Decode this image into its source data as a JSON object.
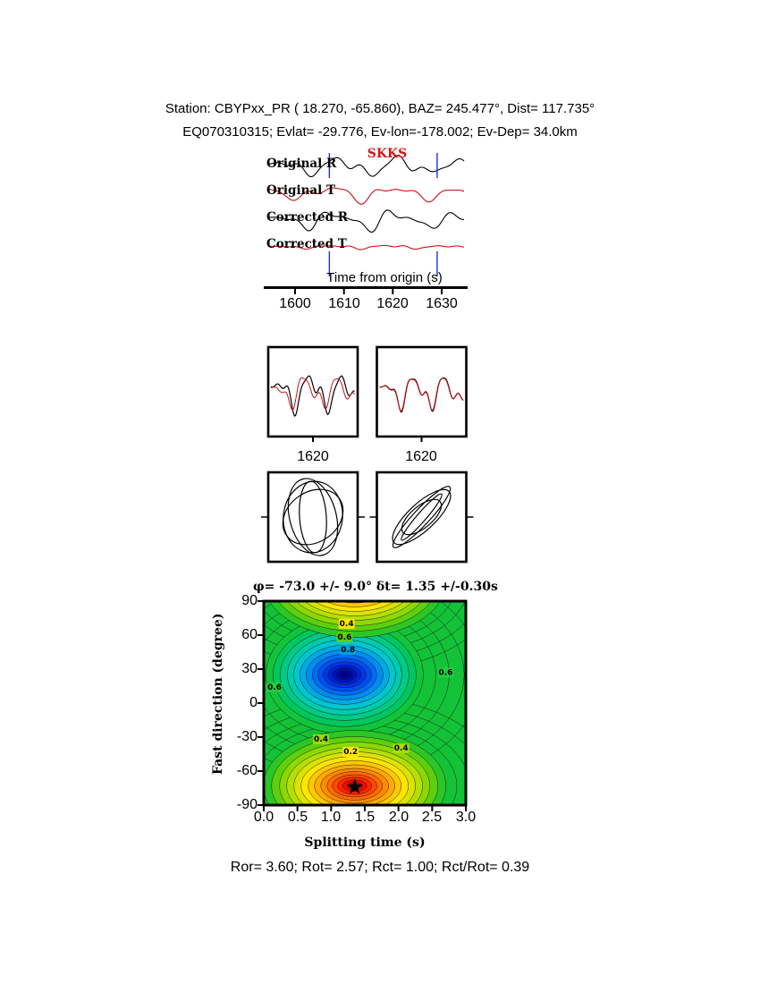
{
  "header": {
    "line1": "Station: CBYPxx_PR ( 18.270, -65.860), BAZ= 245.477°, Dist= 117.735°",
    "line2": "EQ070310315; Evlat= -29.776, Ev-lon=-178.002; Ev-Dep= 34.0km"
  },
  "waveform_panel": {
    "phase_label": "SKKS",
    "phase_label_color": "#d01818",
    "trace_labels": [
      "Original R",
      "Original T",
      "Corrected R",
      "Corrected T"
    ],
    "axis_label": "Time from origin (s)",
    "tick_labels": [
      "1600",
      "1610",
      "1620",
      "1630"
    ],
    "window_marker_color": "#2233cc"
  },
  "zoom_panels": {
    "tick_labels": [
      "1620",
      "1620"
    ]
  },
  "contour": {
    "title": "φ= -73.0 +/- 9.0° δt= 1.35 +/-0.30s",
    "xlabel": "Splitting time (s)",
    "ylabel": "Fast direction (degree)",
    "xtick_labels": [
      "0.0",
      "0.5",
      "1.0",
      "1.5",
      "2.0",
      "2.5",
      "3.0"
    ],
    "ytick_labels": [
      "90",
      "60",
      "30",
      "0",
      "-30",
      "-60",
      "-90"
    ]
  },
  "stats": {
    "line": "Ror= 3.60; Rot= 2.57; Rct= 1.00; Rct/Rot= 0.39"
  },
  "chart_data": [
    {
      "id": "waveform-panel",
      "type": "line",
      "title": "SKKS",
      "xlabel": "Time from origin (s)",
      "xticks": [
        1600,
        1610,
        1620,
        1630
      ],
      "series": [
        {
          "name": "Original R",
          "color": "#000000"
        },
        {
          "name": "Original T",
          "color": "#cc1111"
        },
        {
          "name": "Corrected R",
          "color": "#000000"
        },
        {
          "name": "Corrected T",
          "color": "#cc1111"
        }
      ],
      "window_markers": {
        "color": "#2233cc",
        "times": [
          1607,
          1629
        ]
      }
    },
    {
      "id": "waveform-window",
      "type": "line",
      "panels": [
        {
          "xtick": 1620
        },
        {
          "xtick": 1620
        }
      ],
      "series": [
        {
          "name": "R",
          "color": "#000000"
        },
        {
          "name": "T",
          "color": "#cc1111"
        }
      ]
    },
    {
      "id": "particle-motion",
      "type": "line",
      "panels": 2,
      "stroke": "#000000"
    },
    {
      "id": "error-surface",
      "type": "heatmap",
      "title": "φ= -73.0 +/- 9.0° δt= 1.35 +/-0.30s",
      "xlabel": "Splitting time (s)",
      "ylabel": "Fast direction (degree)",
      "xlim": [
        0,
        3
      ],
      "ylim": [
        -90,
        90
      ],
      "xticks": [
        0.0,
        0.5,
        1.0,
        1.5,
        2.0,
        2.5,
        3.0
      ],
      "yticks": [
        90,
        60,
        30,
        0,
        -30,
        -60,
        -90
      ],
      "best_fit": {
        "fast_direction_deg": -73.0,
        "fast_direction_err_deg": 9.0,
        "delay_time_s": 1.35,
        "delay_time_err_s": 0.3,
        "marker": "star",
        "marker_color": "#000000"
      },
      "local_minimum": {
        "fast_direction_deg": 25,
        "delay_time_s": 1.2
      },
      "contour_levels": [
        0.2,
        0.4,
        0.6,
        0.8
      ],
      "contour_labels": [
        {
          "text": "0.4",
          "t": 1.23,
          "phi": 70,
          "bg": "#ffe600"
        },
        {
          "text": "0.6",
          "t": 1.2,
          "phi": 58,
          "bg": "#5ecf0c"
        },
        {
          "text": "0.8",
          "t": 1.25,
          "phi": 47,
          "bg": "#00a0e0"
        },
        {
          "text": "0.6",
          "t": 0.16,
          "phi": 14,
          "bg": "#22cc44"
        },
        {
          "text": "0.6",
          "t": 2.7,
          "phi": 27,
          "bg": "#22cc44"
        },
        {
          "text": "0.4",
          "t": 0.85,
          "phi": -32,
          "bg": "#9fd800"
        },
        {
          "text": "0.2",
          "t": 1.29,
          "phi": -43,
          "bg": "#ffe600"
        },
        {
          "text": "0.4",
          "t": 2.04,
          "phi": -40,
          "bg": "#a8dc00"
        }
      ],
      "colormap": [
        "#000392",
        "#0040e8",
        "#00abe4",
        "#00cbab",
        "#14c237",
        "#8cd800",
        "#ffe600",
        "#ff8a00",
        "#f00c00",
        "#c00000"
      ],
      "background_color": "#14c237"
    }
  ]
}
